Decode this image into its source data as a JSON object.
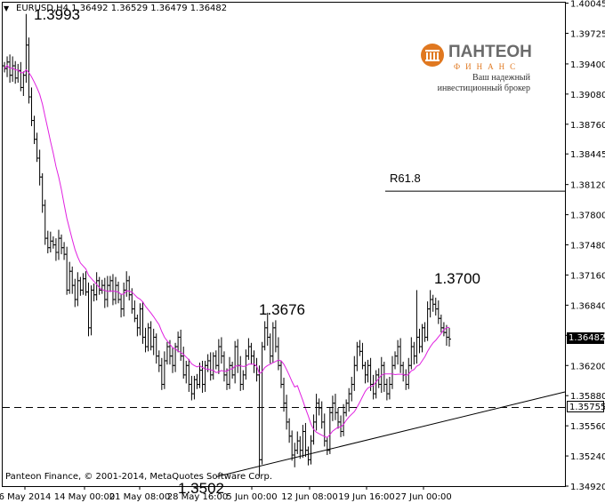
{
  "header": {
    "text": "EURUSD,H4  1.36492 1.36529 1.36479 1.36482"
  },
  "copyright": "Panteon Finance, © 2001-2014, MetaQuotes Software Corp.",
  "logo": {
    "name": "ПАНТЕОН",
    "sub": "ФИНАНС",
    "slogan_line1": "Ваш надежный",
    "slogan_line2": "инвестиционный брокер",
    "colors": {
      "accent": "#e07820",
      "text": "#6b6b6b"
    }
  },
  "chart_data": {
    "type": "ohlc",
    "symbol": "EURUSD",
    "timeframe": "H4",
    "ylim": [
      1.3492,
      1.4005
    ],
    "y_ticks": [
      "1.40045",
      "1.39725",
      "1.39400",
      "1.39080",
      "1.38760",
      "1.38445",
      "1.38120",
      "1.37800",
      "1.37480",
      "1.37160",
      "1.36840",
      "1.36520",
      "1.36200",
      "1.35880",
      "1.35560",
      "1.35240",
      "1.34920"
    ],
    "x_ticks": [
      "6 May 2014",
      "14 May 00:00",
      "21 May 08:00",
      "28 May 16:00",
      "5 Jun 00:00",
      "12 Jun 08:00",
      "19 Jun 16:00",
      "27 Jun 00:00"
    ],
    "current_price": "1.36482",
    "support_level": {
      "value": 1.35755,
      "label": "1.35755",
      "style": "dashed"
    },
    "r618": {
      "label": "R61.8",
      "value": 1.3805
    },
    "trendline": [
      {
        "bar": 0.38,
        "price": 1.3502
      },
      {
        "bar": 1.0,
        "price": 1.3592
      }
    ],
    "callouts": [
      {
        "label": "1.3993",
        "price": 1.3993
      },
      {
        "label": "1.3676",
        "price": 1.3676
      },
      {
        "label": "1.3502",
        "price": 1.3502
      },
      {
        "label": "1.3700",
        "price": 1.37
      }
    ],
    "ma": {
      "color": "#e020e0"
    },
    "closes": [
      1.3935,
      1.3942,
      1.3928,
      1.3938,
      1.3925,
      1.3933,
      1.3915,
      1.3928,
      1.396,
      1.3905,
      1.388,
      1.386,
      1.384,
      1.382,
      1.379,
      1.3755,
      1.3745,
      1.3752,
      1.3748,
      1.374,
      1.3755,
      1.3745,
      1.3738,
      1.37,
      1.372,
      1.3705,
      1.369,
      1.371,
      1.37,
      1.3712,
      1.3698,
      1.366,
      1.37,
      1.3695,
      1.371,
      1.37,
      1.3705,
      1.369,
      1.3705,
      1.371,
      1.369,
      1.3705,
      1.369,
      1.368,
      1.37,
      1.371,
      1.3695,
      1.368,
      1.367,
      1.366,
      1.368,
      1.365,
      1.364,
      1.366,
      1.364,
      1.365,
      1.363,
      1.362,
      1.36,
      1.3625,
      1.364,
      1.363,
      1.362,
      1.364,
      1.365,
      1.363,
      1.361,
      1.362,
      1.36,
      1.359,
      1.3605,
      1.36,
      1.3615,
      1.36,
      1.362,
      1.3625,
      1.361,
      1.363,
      1.362,
      1.364,
      1.363,
      1.361,
      1.36,
      1.362,
      1.361,
      1.364,
      1.362,
      1.36,
      1.361,
      1.363,
      1.364,
      1.363,
      1.362,
      1.361,
      1.352,
      1.364,
      1.366,
      1.365,
      1.363,
      1.366,
      1.364,
      1.362,
      1.36,
      1.358,
      1.356,
      1.3545,
      1.3525,
      1.353,
      1.354,
      1.353,
      1.355,
      1.353,
      1.352,
      1.354,
      1.356,
      1.358,
      1.3575,
      1.356,
      1.354,
      1.353,
      1.357,
      1.358,
      1.357,
      1.356,
      1.355,
      1.357,
      1.358,
      1.359,
      1.36,
      1.362,
      1.364,
      1.3635,
      1.362,
      1.361,
      1.362,
      1.36,
      1.359,
      1.361,
      1.36,
      1.362,
      1.36,
      1.359,
      1.36,
      1.362,
      1.363,
      1.364,
      1.362,
      1.361,
      1.36,
      1.362,
      1.364,
      1.363,
      1.365,
      1.364,
      1.366,
      1.365,
      1.368,
      1.369,
      1.3685,
      1.368,
      1.367,
      1.366,
      1.3655,
      1.365,
      1.3648
    ]
  }
}
